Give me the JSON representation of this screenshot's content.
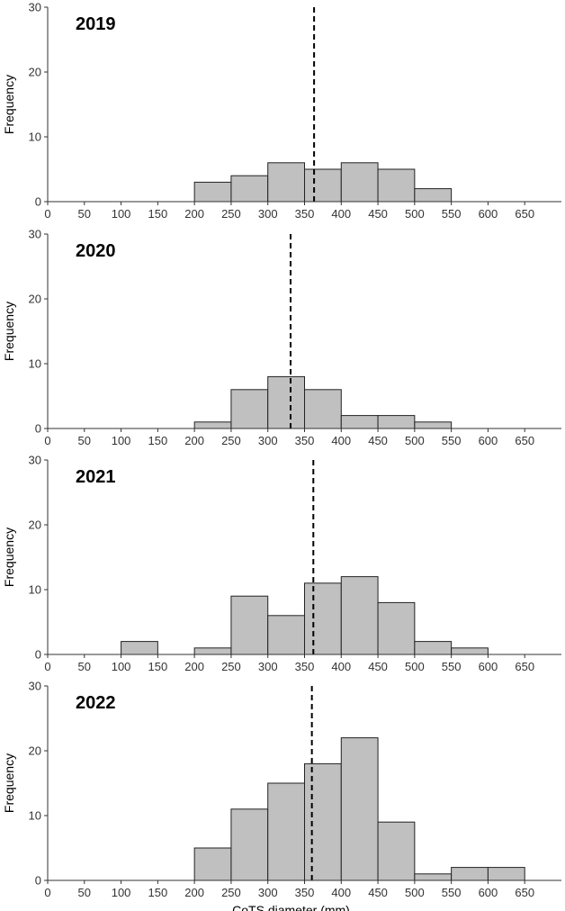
{
  "chart_data": [
    {
      "type": "bar",
      "title": "2019",
      "ylabel": "Frequency",
      "xlabel": "",
      "xlim": [
        0,
        700
      ],
      "ylim": [
        0,
        30
      ],
      "xticks": [
        "0",
        "50",
        "100",
        "150",
        "200",
        "250",
        "300",
        "350",
        "400",
        "450",
        "500",
        "550",
        "600",
        "650"
      ],
      "yticks": [
        "0",
        "10",
        "20",
        "30"
      ],
      "bin_width": 50,
      "bins": [
        {
          "start": 200,
          "count": 3
        },
        {
          "start": 250,
          "count": 4
        },
        {
          "start": 300,
          "count": 6
        },
        {
          "start": 350,
          "count": 5
        },
        {
          "start": 400,
          "count": 6
        },
        {
          "start": 450,
          "count": 5
        },
        {
          "start": 500,
          "count": 2
        }
      ],
      "mean_line": 363
    },
    {
      "type": "bar",
      "title": "2020",
      "ylabel": "Frequency",
      "xlabel": "",
      "xlim": [
        0,
        700
      ],
      "ylim": [
        0,
        30
      ],
      "xticks": [
        "0",
        "50",
        "100",
        "150",
        "200",
        "250",
        "300",
        "350",
        "400",
        "450",
        "500",
        "550",
        "600",
        "650"
      ],
      "yticks": [
        "0",
        "10",
        "20",
        "30"
      ],
      "bin_width": 50,
      "bins": [
        {
          "start": 200,
          "count": 1
        },
        {
          "start": 250,
          "count": 6
        },
        {
          "start": 300,
          "count": 8
        },
        {
          "start": 350,
          "count": 6
        },
        {
          "start": 400,
          "count": 2
        },
        {
          "start": 450,
          "count": 2
        },
        {
          "start": 500,
          "count": 1
        }
      ],
      "mean_line": 331
    },
    {
      "type": "bar",
      "title": "2021",
      "ylabel": "Frequency",
      "xlabel": "",
      "xlim": [
        0,
        700
      ],
      "ylim": [
        0,
        30
      ],
      "xticks": [
        "0",
        "50",
        "100",
        "150",
        "200",
        "250",
        "300",
        "350",
        "400",
        "450",
        "500",
        "550",
        "600",
        "650"
      ],
      "yticks": [
        "0",
        "10",
        "20",
        "30"
      ],
      "bin_width": 50,
      "bins": [
        {
          "start": 100,
          "count": 2
        },
        {
          "start": 200,
          "count": 1
        },
        {
          "start": 250,
          "count": 9
        },
        {
          "start": 300,
          "count": 6
        },
        {
          "start": 350,
          "count": 11
        },
        {
          "start": 400,
          "count": 12
        },
        {
          "start": 450,
          "count": 8
        },
        {
          "start": 500,
          "count": 2
        },
        {
          "start": 550,
          "count": 1
        }
      ],
      "mean_line": 362
    },
    {
      "type": "bar",
      "title": "2022",
      "ylabel": "Frequency",
      "xlabel": "CoTS diameter (mm)",
      "xlim": [
        0,
        700
      ],
      "ylim": [
        0,
        30
      ],
      "xticks": [
        "0",
        "50",
        "100",
        "150",
        "200",
        "250",
        "300",
        "350",
        "400",
        "450",
        "500",
        "550",
        "600",
        "650"
      ],
      "yticks": [
        "0",
        "10",
        "20",
        "30"
      ],
      "bin_width": 50,
      "bins": [
        {
          "start": 200,
          "count": 5
        },
        {
          "start": 250,
          "count": 11
        },
        {
          "start": 300,
          "count": 15
        },
        {
          "start": 350,
          "count": 18
        },
        {
          "start": 400,
          "count": 22
        },
        {
          "start": 450,
          "count": 9
        },
        {
          "start": 500,
          "count": 1
        },
        {
          "start": 550,
          "count": 2
        },
        {
          "start": 600,
          "count": 2
        }
      ],
      "mean_line": 360
    }
  ],
  "colors": {
    "bar_fill": "#c0c0c0",
    "bar_stroke": "#222222",
    "axis": "#333333",
    "mean_line": "#000000"
  }
}
